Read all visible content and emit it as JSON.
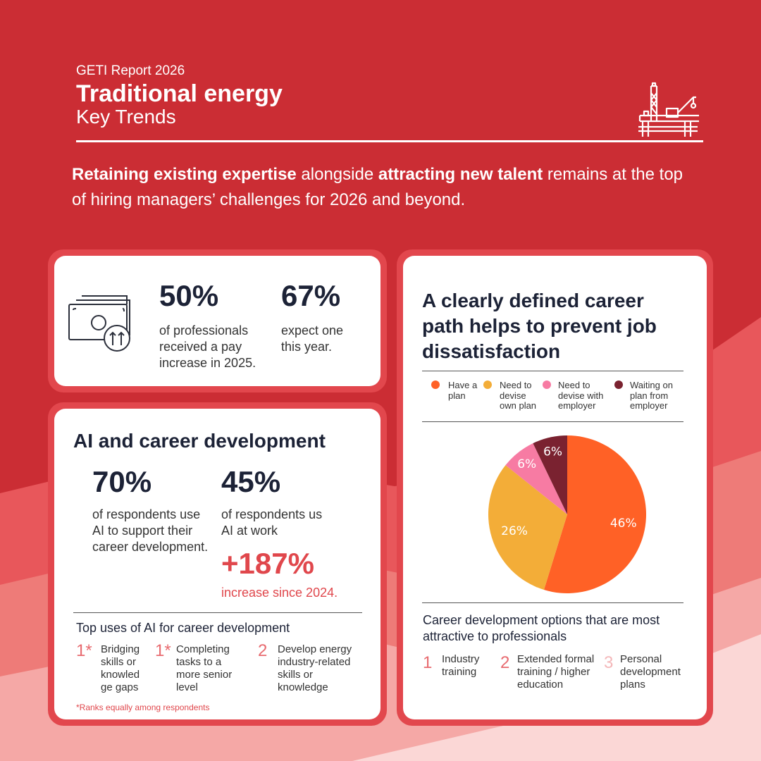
{
  "colors": {
    "brand_red": "#cb2d34",
    "accent_red": "#e0474c",
    "have_plan": "#ff6126",
    "devise_own": "#f3ad38",
    "devise_with_employer": "#f77ba3",
    "waiting": "#7a2230"
  },
  "header": {
    "report": "GETI Report 2026",
    "title": "Traditional energy",
    "subtitle": "Key Trends",
    "icon": "oil-rig-icon"
  },
  "intro": {
    "bold1": "Retaining existing expertise",
    "text1": " alongside ",
    "bold2": "attracting new talent",
    "text2": " remains at the top of hiring managers’ challenges for 2026 and beyond."
  },
  "pay": {
    "icon": "money-increase-icon",
    "stat1": {
      "value": "50%",
      "text": "of professionals received a pay increase in 2025."
    },
    "stat2": {
      "value": "67%",
      "text": "expect one this year."
    }
  },
  "ai": {
    "title": "AI and career development",
    "stat1": {
      "value": "70%",
      "text": "of respondents use AI to support their career development."
    },
    "stat2": {
      "value": "45%",
      "text": "of respondents us AI at work"
    },
    "growth": {
      "value": "+187%",
      "text": "increase since 2024."
    },
    "uses_title": "Top uses of AI for career development",
    "uses": [
      {
        "rank": "1*",
        "text": "Bridging skills or knowled ge gaps"
      },
      {
        "rank": "1*",
        "text": "Completing tasks to a more senior level"
      },
      {
        "rank": "2",
        "text": "Develop energy industry-related skills or knowledge"
      }
    ],
    "footnote": "*Ranks equally among respondents"
  },
  "career": {
    "title": "A clearly defined career path helps to prevent job dissatisfaction",
    "options_title": "Career development options that are most attractive to professionals",
    "options": [
      {
        "rank": "1",
        "text": "Industry training"
      },
      {
        "rank": "2",
        "text": "Extended formal training / higher education"
      },
      {
        "rank": "3",
        "text": "Personal development plans"
      }
    ]
  },
  "chart_data": {
    "type": "pie",
    "title": "A clearly defined career path helps to prevent job dissatisfaction",
    "categories": [
      "Have a plan",
      "Need to devise own plan",
      "Need to devise with employer",
      "Waiting on plan from employer"
    ],
    "values": [
      46,
      26,
      6,
      6
    ],
    "labels": [
      "46%",
      "26%",
      "6%",
      "6%"
    ],
    "colors": [
      "#ff6126",
      "#f3ad38",
      "#f77ba3",
      "#7a2230"
    ],
    "legend_position": "top"
  }
}
